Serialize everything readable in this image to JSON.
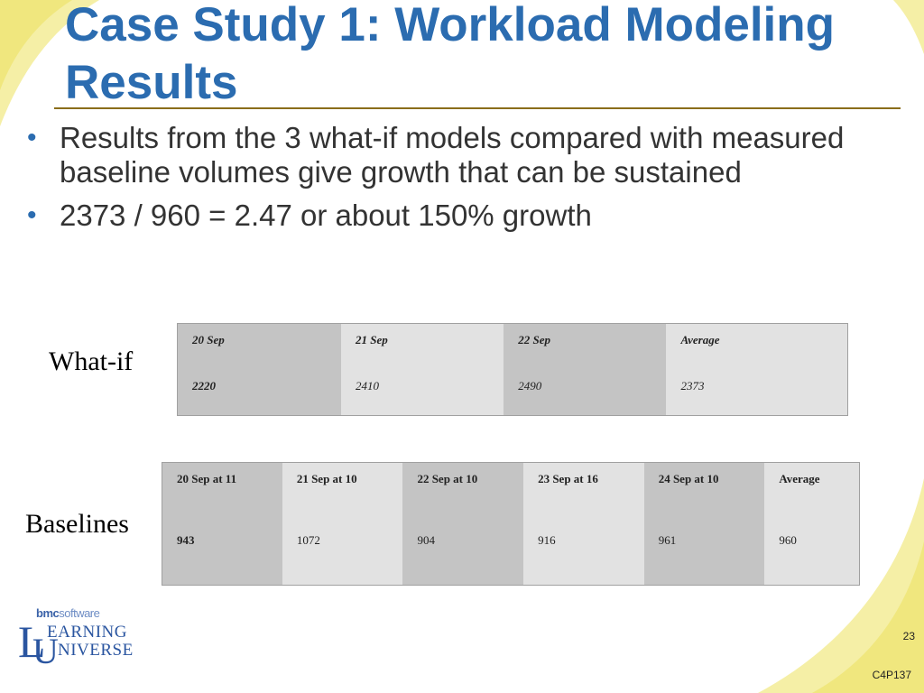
{
  "slide": {
    "title": "Case Study 1: Workload Modeling Results",
    "bullets": [
      "Results from the 3 what-if models compared with measured baseline volumes give growth that can be sustained",
      "2373 / 960 = 2.47 or about 150% growth"
    ],
    "page_number": "23",
    "code": "C4P137"
  },
  "whatif": {
    "label": "What-if",
    "headers": [
      "20 Sep",
      "21 Sep",
      "22 Sep",
      "Average"
    ],
    "values": [
      "2220",
      "2410",
      "2490",
      "2373"
    ]
  },
  "baselines": {
    "label": "Baselines",
    "headers": [
      "20 Sep at 11",
      "21 Sep at 10",
      "22 Sep at 10",
      "23 Sep at 16",
      "24 Sep at 10",
      "Average"
    ],
    "values": [
      "943",
      "1072",
      "904",
      "916",
      "961",
      "960"
    ]
  },
  "logo": {
    "brand": "bmc",
    "brand_suffix": "software",
    "line1": "EARNING",
    "line2": "NIVERSE",
    "initial1": "L",
    "initial2": "U"
  },
  "colors": {
    "title": "#2b6cb0",
    "accent_swoosh": "#f3ec9a",
    "cell_dark": "#c4c4c4",
    "cell_light": "#e2e2e2"
  }
}
